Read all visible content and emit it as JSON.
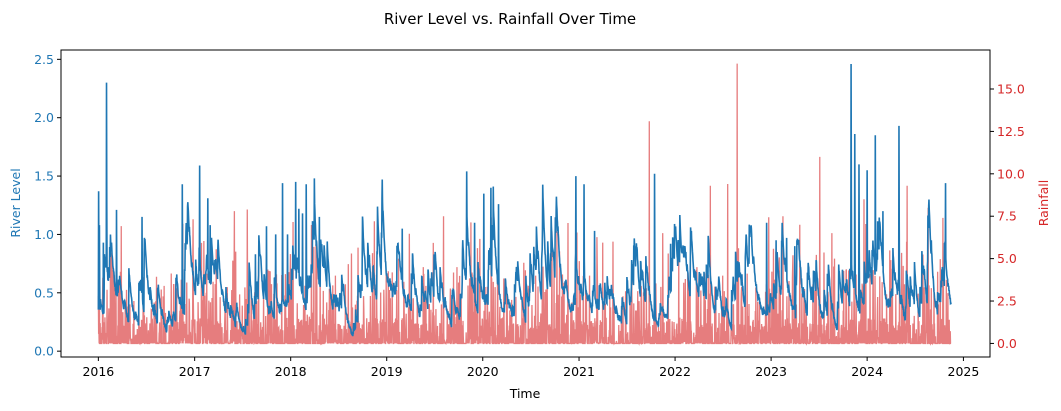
{
  "chart_data": {
    "type": "line",
    "title": "River Level vs. Rainfall Over Time",
    "xlabel": "Time",
    "x_ticks": [
      "2016",
      "2017",
      "2018",
      "2019",
      "2020",
      "2021",
      "2022",
      "2023",
      "2024",
      "2025"
    ],
    "xlim": [
      "2015-08-12",
      "2025-04-12"
    ],
    "data_range": [
      "2016-01-01",
      "2024-11-15"
    ],
    "grid": false,
    "legend": "none",
    "y_left": {
      "label": "River Level",
      "color": "#1f77b4",
      "ylim": [
        -0.05,
        2.58
      ],
      "ticks": [
        "0.0",
        "0.5",
        "1.0",
        "1.5",
        "2.0",
        "2.5"
      ]
    },
    "y_right": {
      "label": "Rainfall",
      "color": "#d62728",
      "ylim": [
        -0.8,
        17.3
      ],
      "ticks": [
        "0.0",
        "2.5",
        "5.0",
        "7.5",
        "10.0",
        "12.5",
        "15.0"
      ]
    },
    "series": [
      {
        "axis": "left",
        "color": "#1f77b4",
        "baseline_level": 0.15,
        "peaks": [
          [
            "2016-01-02",
            1.37
          ],
          [
            "2016-01-05",
            1.08
          ],
          [
            "2016-01-20",
            0.93
          ],
          [
            "2016-02-01",
            2.3
          ],
          [
            "2016-02-20",
            0.93
          ],
          [
            "2016-03-10",
            1.21
          ],
          [
            "2016-06-15",
            1.15
          ],
          [
            "2016-11-15",
            1.43
          ],
          [
            "2016-12-20",
            0.73
          ],
          [
            "2017-01-20",
            1.59
          ],
          [
            "2017-02-20",
            1.31
          ],
          [
            "2017-03-01",
            1.08
          ],
          [
            "2017-08-20",
            0.83
          ],
          [
            "2017-10-01",
            1.07
          ],
          [
            "2017-11-05",
            1.0
          ],
          [
            "2017-12-01",
            1.44
          ],
          [
            "2017-12-20",
            1.0
          ],
          [
            "2018-01-20",
            1.45
          ],
          [
            "2018-02-01",
            1.22
          ],
          [
            "2018-02-15",
            1.18
          ],
          [
            "2018-03-01",
            1.43
          ],
          [
            "2018-04-01",
            1.48
          ],
          [
            "2018-04-20",
            1.15
          ],
          [
            "2018-12-15",
            1.47
          ],
          [
            "2019-03-01",
            1.05
          ],
          [
            "2019-11-01",
            1.54
          ],
          [
            "2019-12-01",
            1.1
          ],
          [
            "2020-01-05",
            1.35
          ],
          [
            "2020-02-01",
            1.4
          ],
          [
            "2020-02-10",
            1.41
          ],
          [
            "2020-03-01",
            1.26
          ],
          [
            "2020-12-20",
            1.5
          ],
          [
            "2021-01-20",
            1.43
          ],
          [
            "2021-03-01",
            1.03
          ],
          [
            "2021-10-15",
            1.52
          ],
          [
            "2021-12-15",
            0.92
          ],
          [
            "2022-12-15",
            1.1
          ],
          [
            "2023-01-20",
            0.95
          ],
          [
            "2023-03-01",
            0.97
          ],
          [
            "2023-04-01",
            0.9
          ],
          [
            "2023-11-01",
            2.46
          ],
          [
            "2023-11-15",
            1.86
          ],
          [
            "2023-12-01",
            1.6
          ],
          [
            "2024-01-01",
            1.55
          ],
          [
            "2024-02-01",
            1.85
          ],
          [
            "2024-03-01",
            1.2
          ],
          [
            "2024-05-01",
            1.93
          ],
          [
            "2024-09-01",
            0.95
          ],
          [
            "2024-10-25",
            1.44
          ]
        ]
      },
      {
        "axis": "right",
        "color": "#d62728",
        "opacity": 0.6,
        "baseline_level": 0.3,
        "peaks": [
          [
            "2016-03-20",
            3.5
          ],
          [
            "2016-05-15",
            2.5
          ],
          [
            "2016-07-20",
            2.0
          ],
          [
            "2016-10-20",
            3.5
          ],
          [
            "2016-12-25",
            5.0
          ],
          [
            "2017-03-20",
            3.5
          ],
          [
            "2017-06-01",
            7.8
          ],
          [
            "2017-07-20",
            7.9
          ],
          [
            "2017-09-01",
            4.8
          ],
          [
            "2017-10-20",
            3.5
          ],
          [
            "2018-04-10",
            6.0
          ],
          [
            "2018-06-20",
            4.0
          ],
          [
            "2018-08-20",
            5.3
          ],
          [
            "2018-11-15",
            7.2
          ],
          [
            "2019-02-15",
            5.0
          ],
          [
            "2019-05-20",
            4.5
          ],
          [
            "2019-08-05",
            7.5
          ],
          [
            "2019-09-25",
            4.5
          ],
          [
            "2020-07-20",
            4.0
          ],
          [
            "2020-09-20",
            6.6
          ],
          [
            "2020-11-20",
            7.1
          ],
          [
            "2021-05-10",
            6.0
          ],
          [
            "2021-07-20",
            4.0
          ],
          [
            "2021-09-25",
            13.1
          ],
          [
            "2021-11-15",
            6.5
          ],
          [
            "2022-01-15",
            5.5
          ],
          [
            "2022-03-25",
            4.5
          ],
          [
            "2022-05-15",
            9.3
          ],
          [
            "2022-07-20",
            9.4
          ],
          [
            "2022-08-25",
            16.5
          ],
          [
            "2022-09-25",
            4.0
          ],
          [
            "2023-02-15",
            7.5
          ],
          [
            "2023-04-20",
            7.0
          ],
          [
            "2023-07-05",
            11.0
          ],
          [
            "2023-08-20",
            6.5
          ],
          [
            "2023-12-20",
            8.5
          ],
          [
            "2024-06-01",
            9.3
          ],
          [
            "2024-08-20",
            8.0
          ],
          [
            "2024-10-15",
            7.4
          ]
        ]
      }
    ]
  }
}
